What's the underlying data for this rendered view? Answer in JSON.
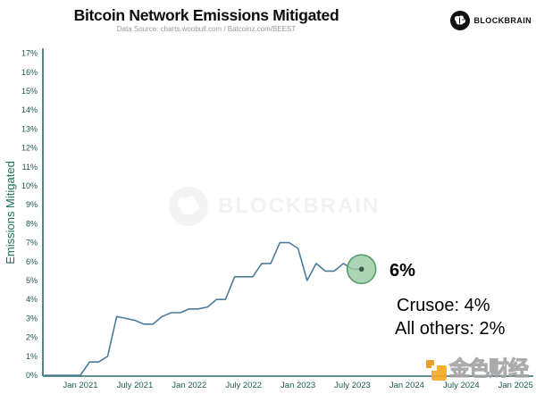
{
  "header": {
    "title": "Bitcoin Network Emissions Mitigated",
    "subtitle": "Data Source: charts.woobull.com / Batcoinz.com/BEEST"
  },
  "brand": {
    "name": "BLOCKBRAIN",
    "icon": "brain-icon",
    "icon_bg": "#111111"
  },
  "center_watermark": {
    "text": "BLOCKBRAIN"
  },
  "corner_watermark": {
    "text": "金色财经",
    "accent": "#f0a028"
  },
  "annotations": {
    "endpoint_value": "6%",
    "breakdown_line1": "Crusoe: 4%",
    "breakdown_line2": "All others: 2%"
  },
  "chart_data": {
    "type": "line",
    "title": "Bitcoin Network Emissions Mitigated",
    "xlabel": "",
    "ylabel": "Emissions Mitigated",
    "ylim": [
      0,
      17
    ],
    "grid": false,
    "legend": false,
    "line_color": "#4a7c9b",
    "axis_color": "#2e6b68",
    "tick_color": "#1d5950",
    "ylabel_color": "#1a7258",
    "marker": {
      "label": "6%",
      "fill": "rgba(154,201,164,0.8)",
      "stroke": "#4d9c63",
      "dot": "#44564c"
    },
    "y_ticks": [
      "0%",
      "1%",
      "2%",
      "3%",
      "4%",
      "5%",
      "6%",
      "7%",
      "8%",
      "9%",
      "10%",
      "11%",
      "12%",
      "13%",
      "14%",
      "15%",
      "16%",
      "17%"
    ],
    "x_ticks": [
      "Jan 2021",
      "July 2021",
      "Jan 2022",
      "July 2022",
      "Jan 2023",
      "July 2023",
      "Jan 2024",
      "July 2024",
      "Jan 2025"
    ],
    "series": [
      {
        "name": "Emissions Mitigated (%)",
        "x": [
          "2020-09",
          "2020-10",
          "2020-11",
          "2020-12",
          "2021-01",
          "2021-02",
          "2021-03",
          "2021-04",
          "2021-05",
          "2021-06",
          "2021-07",
          "2021-08",
          "2021-09",
          "2021-10",
          "2021-11",
          "2021-12",
          "2022-01",
          "2022-02",
          "2022-03",
          "2022-04",
          "2022-05",
          "2022-06",
          "2022-07",
          "2022-08",
          "2022-09",
          "2022-10",
          "2022-11",
          "2022-12",
          "2023-01",
          "2023-02",
          "2023-03",
          "2023-04",
          "2023-05",
          "2023-06",
          "2023-07",
          "2023-08"
        ],
        "values": [
          0,
          0,
          0,
          0,
          0,
          0.7,
          0.7,
          1.0,
          3.1,
          3.0,
          2.9,
          2.7,
          2.7,
          3.1,
          3.3,
          3.3,
          3.5,
          3.5,
          3.6,
          4.0,
          4.0,
          5.2,
          5.2,
          5.2,
          5.9,
          5.9,
          7.0,
          7.0,
          6.7,
          5.0,
          5.9,
          5.5,
          5.5,
          5.9,
          5.6,
          5.6
        ]
      }
    ]
  }
}
